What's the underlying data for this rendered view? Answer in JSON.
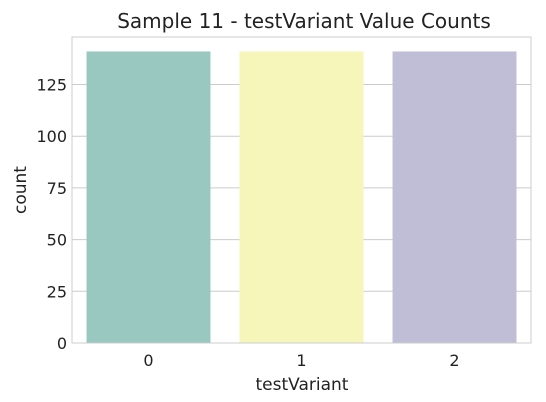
{
  "chart_data": {
    "type": "bar",
    "title": "Sample 11 - testVariant Value Counts",
    "xlabel": "testVariant",
    "ylabel": "count",
    "categories": [
      "0",
      "1",
      "2"
    ],
    "values": [
      141,
      141,
      141
    ],
    "colors": [
      "#98c8c0",
      "#f6f6ba",
      "#c0bdd6"
    ],
    "ylim": [
      0,
      148
    ],
    "yticks": [
      0,
      25,
      50,
      75,
      100,
      125
    ],
    "grid": true,
    "grid_axis": "y",
    "legend": "none"
  }
}
